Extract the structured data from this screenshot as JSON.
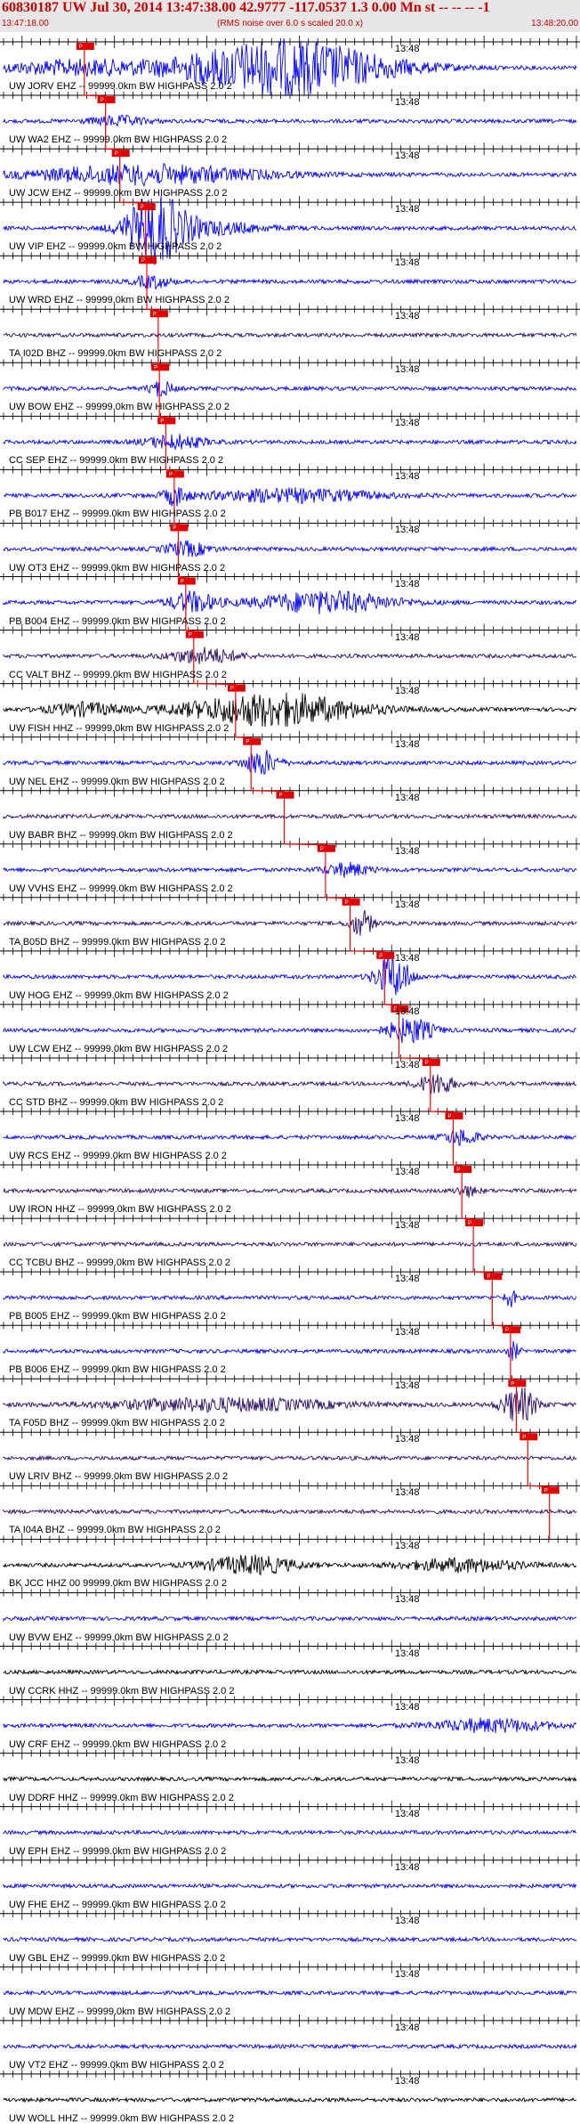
{
  "header": {
    "title": "60830187 UW Jul 30, 2014 13:47:38.00   42.9777 -117.0537  1.3 0.00 Mn st -- -- --  -1",
    "start_time": "13:47:18.00",
    "scale_note": "(RMS noise over 6.0 s scaled 20.0 x)",
    "end_time": "13:48:20.00"
  },
  "colors": {
    "header_text": "#cc0000",
    "pick_line": "#ff0000",
    "axis": "#000000"
  },
  "traces": [
    {
      "label": "UW JORV EHZ -- 99999.0km BW  HIGHPASS  2.0  2",
      "time": "13:48",
      "color": "#0000ff",
      "pick": 0.141,
      "ev": [
        [
          0.12,
          0.13,
          0.55
        ],
        [
          0.49,
          0.18,
          2.2
        ]
      ]
    },
    {
      "label": "UW WA2 EHZ -- 99999.0km BW  HIGHPASS  2.0  2",
      "time": "13:48",
      "color": "#0000ff",
      "pick": 0.178,
      "ev": [
        [
          0.2,
          0.05,
          0.35
        ]
      ]
    },
    {
      "label": "UW JCW EHZ -- 99999.0km BW  HIGHPASS  2.0  2",
      "time": "13:48",
      "color": "#0000ff",
      "pick": 0.203,
      "ev": [
        [
          0.25,
          0.2,
          0.75
        ]
      ]
    },
    {
      "label": "UW VIP EHZ -- 99999.0km BW  HIGHPASS  2.0  2",
      "time": "13:48",
      "color": "#0000ff",
      "pick": 0.248,
      "ev": [
        [
          0.265,
          0.05,
          2.6
        ],
        [
          0.35,
          0.1,
          0.5
        ]
      ]
    },
    {
      "label": "UW WRD EHZ -- 99999.0km BW  HIGHPASS  2.0  2",
      "time": "13:48",
      "color": "#0000ff",
      "pick": 0.25,
      "ev": [
        [
          0.26,
          0.03,
          0.5
        ]
      ]
    },
    {
      "label": "TA I02D BHZ -- 99999.0km BW  HIGHPASS  2.0  2",
      "time": "13:48",
      "color": "#2a0a6a",
      "pick": 0.27,
      "ev": []
    },
    {
      "label": "UW BOW EHZ -- 99999.0km BW  HIGHPASS  2.0  2",
      "time": "13:48",
      "color": "#0000ff",
      "pick": 0.272,
      "ev": [
        [
          0.275,
          0.02,
          0.6
        ]
      ]
    },
    {
      "label": "CC SEP EHZ -- 99999.0km BW  HIGHPASS  2.0  2",
      "time": "13:48",
      "color": "#0000ff",
      "pick": 0.283,
      "ev": [
        [
          0.3,
          0.05,
          0.55
        ]
      ]
    },
    {
      "label": "PB B017 EHZ -- 99999.0km BW  HIGHPASS  2.0  2",
      "time": "13:48",
      "color": "#0000ff",
      "pick": 0.298,
      "ev": [
        [
          0.3,
          0.02,
          0.7
        ],
        [
          0.5,
          0.15,
          0.5
        ]
      ]
    },
    {
      "label": "UW OT3 EHZ -- 99999.0km BW  HIGHPASS  2.0  2",
      "time": "13:48",
      "color": "#0000ff",
      "pick": 0.305,
      "ev": [
        [
          0.32,
          0.04,
          0.55
        ]
      ]
    },
    {
      "label": "PB B004 EHZ -- 99999.0km BW  HIGHPASS  2.0  2",
      "time": "13:48",
      "color": "#0000ff",
      "pick": 0.318,
      "ev": [
        [
          0.33,
          0.04,
          0.8
        ],
        [
          0.56,
          0.12,
          0.85
        ]
      ]
    },
    {
      "label": "CC VALT BHZ -- 99999.0km BW  HIGHPASS  2.0  2",
      "time": "13:48",
      "color": "#2a0a6a",
      "pick": 0.332,
      "ev": [
        [
          0.35,
          0.06,
          0.6
        ]
      ]
    },
    {
      "label": "UW FISH HHZ -- 99999.0km BW  HIGHPASS  2.0  2",
      "time": "13:48",
      "color": "#000000",
      "pick": 0.405,
      "ev": [
        [
          0.14,
          0.06,
          0.5
        ],
        [
          0.47,
          0.15,
          1.3
        ]
      ]
    },
    {
      "label": "UW NEL EHZ -- 99999.0km BW  HIGHPASS  2.0  2",
      "time": "13:48",
      "color": "#0000ff",
      "pick": 0.432,
      "ev": [
        [
          0.45,
          0.03,
          1.0
        ]
      ]
    },
    {
      "label": "UW BABR BHZ -- 99999.0km BW  HIGHPASS  2.0  2",
      "time": "13:48",
      "color": "#2a0a6a",
      "pick": 0.49,
      "ev": []
    },
    {
      "label": "UW VVHS EHZ -- 99999.0km BW  HIGHPASS  2.0  2",
      "time": "13:48",
      "color": "#0000ff",
      "pick": 0.562,
      "ev": [
        [
          0.6,
          0.04,
          0.5
        ]
      ]
    },
    {
      "label": "TA B05D BHZ -- 99999.0km BW  HIGHPASS  2.0  2",
      "time": "13:48",
      "color": "#2a0a6a",
      "pick": 0.605,
      "ev": [
        [
          0.625,
          0.02,
          1.0
        ]
      ]
    },
    {
      "label": "UW HOG EHZ -- 99999.0km BW  HIGHPASS  2.0  2",
      "time": "13:48",
      "color": "#0000ff",
      "pick": 0.665,
      "ev": [
        [
          0.68,
          0.03,
          1.7
        ]
      ]
    },
    {
      "label": "UW LCW EHZ -- 99999.0km BW  HIGHPASS  2.0  2",
      "time": "13:48",
      "color": "#0000ff",
      "pick": 0.69,
      "ev": [
        [
          0.71,
          0.04,
          1.0
        ]
      ]
    },
    {
      "label": "CC STD BHZ -- 99999.0km BW  HIGHPASS  2.0  2",
      "time": "13:48",
      "color": "#2a0a6a",
      "pick": 0.745,
      "ev": [
        [
          0.755,
          0.03,
          0.9
        ]
      ]
    },
    {
      "label": "UW RCS EHZ -- 99999.0km BW  HIGHPASS  2.0  2",
      "time": "13:48",
      "color": "#0000ff",
      "pick": 0.785,
      "ev": [
        [
          0.8,
          0.03,
          0.6
        ]
      ]
    },
    {
      "label": "UW IRON HHZ -- 99999.0km BW  HIGHPASS  2.0  2",
      "time": "13:48",
      "color": "#2a0a6a",
      "pick": 0.8,
      "ev": [
        [
          0.81,
          0.02,
          0.4
        ]
      ]
    },
    {
      "label": "CC TCBU BHZ -- 99999.0km BW  HIGHPASS  2.0  2",
      "time": "13:48",
      "color": "#2a0a6a",
      "pick": 0.82,
      "ev": []
    },
    {
      "label": "PB B005 EHZ -- 99999.0km BW  HIGHPASS  2.0  2",
      "time": "13:48",
      "color": "#0000ff",
      "pick": 0.853,
      "ev": [
        [
          0.885,
          0.01,
          0.7
        ]
      ]
    },
    {
      "label": "PB B006 EHZ -- 99999.0km BW  HIGHPASS  2.0  2",
      "time": "13:48",
      "color": "#0000ff",
      "pick": 0.885,
      "ev": [
        [
          0.89,
          0.01,
          0.7
        ]
      ]
    },
    {
      "label": "TA F05D BHZ -- 99999.0km BW  HIGHPASS  2.0  2",
      "time": "13:48",
      "color": "#2a0a6a",
      "pick": 0.895,
      "ev": [
        [
          0.9,
          0.03,
          1.4
        ],
        [
          0.38,
          0.2,
          0.5
        ]
      ]
    },
    {
      "label": "UW LRIV BHZ -- 99999.0km BW  HIGHPASS  2.0  2",
      "time": "13:48",
      "color": "#2a0a6a",
      "pick": 0.915,
      "ev": []
    },
    {
      "label": "TA I04A BHZ -- 99999.0km BW  HIGHPASS  2.0  2",
      "time": "13:48",
      "color": "#2a0a6a",
      "pick": 0.953,
      "ev": []
    },
    {
      "label": "BK JCC HHZ 00 99999.0km BW  HIGHPASS  2.0  2",
      "time": "13:48",
      "color": "#000000",
      "pick": null,
      "ev": [
        [
          0.43,
          0.08,
          0.7
        ],
        [
          0.8,
          0.1,
          0.5
        ]
      ]
    },
    {
      "label": "UW BVW EHZ -- 99999.0km BW  HIGHPASS  2.0  2",
      "time": "13:48",
      "color": "#0000ff",
      "pick": null,
      "ev": []
    },
    {
      "label": "UW CCRK HHZ -- 99999.0km BW  HIGHPASS  2.0  2",
      "time": "13:48",
      "color": "#000000",
      "pick": null,
      "ev": []
    },
    {
      "label": "UW CRF EHZ -- 99999.0km BW  HIGHPASS  2.0  2",
      "time": "13:48",
      "color": "#0000ff",
      "pick": null,
      "ev": [
        [
          0.85,
          0.1,
          0.5
        ]
      ]
    },
    {
      "label": "UW DDRF HHZ -- 99999.0km BW  HIGHPASS  2.0  2",
      "time": "13:48",
      "color": "#000000",
      "pick": null,
      "ev": []
    },
    {
      "label": "UW EPH EHZ -- 99999.0km BW  HIGHPASS  2.0  2",
      "time": "13:48",
      "color": "#0000ff",
      "pick": null,
      "ev": []
    },
    {
      "label": "UW FHE EHZ -- 99999.0km BW  HIGHPASS  2.0  2",
      "time": "13:48",
      "color": "#0000ff",
      "pick": null,
      "ev": []
    },
    {
      "label": "UW GBL EHZ -- 99999.0km BW  HIGHPASS  2.0  2",
      "time": "13:48",
      "color": "#0000ff",
      "pick": null,
      "ev": []
    },
    {
      "label": "UW MDW EHZ -- 99999.0km BW  HIGHPASS  2.0  2",
      "time": "13:48",
      "color": "#0000ff",
      "pick": null,
      "ev": []
    },
    {
      "label": "UW VT2 EHZ -- 99999.0km BW  HIGHPASS  2.0  2",
      "time": "13:48",
      "color": "#0000ff",
      "pick": null,
      "ev": []
    },
    {
      "label": "UW WOLL HHZ -- 99999.0km BW  HIGHPASS  2.0  2",
      "time": "13:48",
      "color": "#000000",
      "pick": null,
      "ev": []
    }
  ]
}
